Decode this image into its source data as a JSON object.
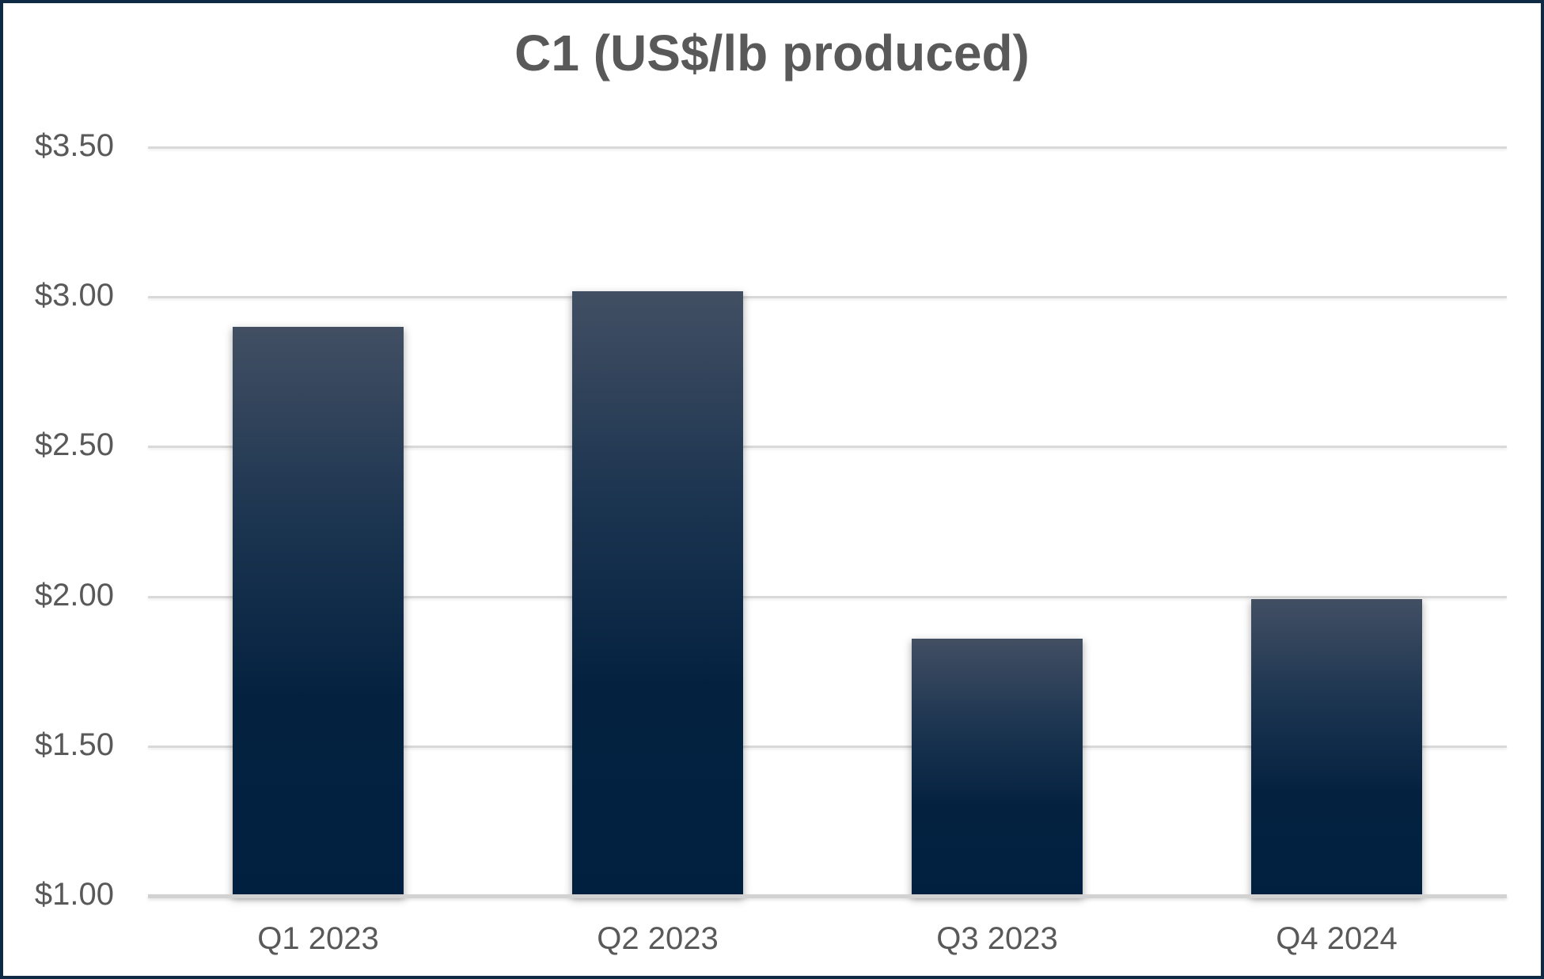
{
  "chart_data": {
    "type": "bar",
    "title": "C1 (US$/lb produced)",
    "categories": [
      "Q1 2023",
      "Q2 2023",
      "Q3 2023",
      "Q4 2024"
    ],
    "values": [
      2.9,
      3.02,
      1.86,
      1.99
    ],
    "xlabel": "",
    "ylabel": "",
    "ylim": [
      1.0,
      3.5
    ],
    "yticks": [
      {
        "value": 3.5,
        "label": "$3.50"
      },
      {
        "value": 3.0,
        "label": "$3.00"
      },
      {
        "value": 2.5,
        "label": "$2.50"
      },
      {
        "value": 2.0,
        "label": "$2.00"
      },
      {
        "value": 1.5,
        "label": "$1.50"
      },
      {
        "value": 1.0,
        "label": "$1.00"
      }
    ],
    "grid": true,
    "legend": false,
    "colors": {
      "bar_gradient_top": "#424f63",
      "bar_gradient_bottom": "#012040",
      "gridline": "#d9d9d9",
      "axis_baseline": "#d2d2d2",
      "text": "#595959",
      "frame_border": "#0e2a44",
      "background": "#ffffff"
    }
  }
}
